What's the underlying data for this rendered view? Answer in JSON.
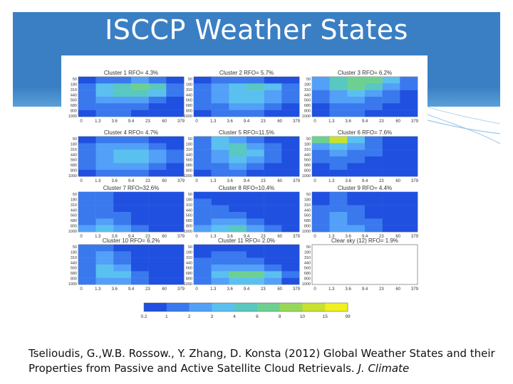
{
  "page": {
    "title": "ISCCP Weather States"
  },
  "citation": {
    "text": "Tselioudis, G.,W.B. Rossow., Y. Zhang, D. Konsta (2012) Global Weather States and their Properties from Passive and Active Satellite Cloud Retrievals.",
    "journal": "J. Climate"
  },
  "colors": {
    "banner": "#3a7fc4",
    "white": "#ffffff"
  },
  "chart_data": {
    "type": "heatmap",
    "x_ticks": [
      "0",
      "1.3",
      "3.6",
      "9.4",
      "23",
      "60",
      "379"
    ],
    "y_ticks": [
      "50",
      "180",
      "310",
      "440",
      "560",
      "680",
      "800",
      "1000"
    ],
    "colorbar": {
      "labels": [
        "0.2",
        "1",
        "2",
        "3",
        "4",
        "6",
        "8",
        "10",
        "15",
        "99"
      ],
      "colors": [
        "#2050e0",
        "#3a78ee",
        "#52a0f8",
        "#5ac0f0",
        "#58c8c0",
        "#6ed090",
        "#98d858",
        "#c8e030",
        "#f0f020"
      ]
    },
    "panels": [
      {
        "title": "Cluster 1   RFO= 4.3%",
        "cells": [
          [
            0,
            1,
            1,
            2,
            1,
            0
          ],
          [
            1,
            3,
            4,
            5,
            4,
            1
          ],
          [
            1,
            3,
            4,
            4,
            3,
            1
          ],
          [
            1,
            2,
            2,
            2,
            1,
            0
          ],
          [
            1,
            1,
            1,
            1,
            0,
            0
          ],
          [
            0,
            1,
            1,
            0,
            0,
            0
          ]
        ]
      },
      {
        "title": "Cluster 2   RFO= 5.7%",
        "cells": [
          [
            0,
            1,
            1,
            1,
            0,
            0
          ],
          [
            1,
            2,
            3,
            4,
            3,
            1
          ],
          [
            1,
            2,
            3,
            3,
            2,
            1
          ],
          [
            1,
            2,
            3,
            3,
            2,
            1
          ],
          [
            1,
            1,
            2,
            2,
            1,
            0
          ],
          [
            0,
            1,
            1,
            1,
            0,
            0
          ]
        ]
      },
      {
        "title": "Cluster 3   RFO= 6.2%",
        "cells": [
          [
            2,
            4,
            5,
            5,
            3,
            1
          ],
          [
            2,
            4,
            5,
            4,
            2,
            1
          ],
          [
            1,
            2,
            3,
            2,
            1,
            0
          ],
          [
            1,
            2,
            2,
            1,
            1,
            0
          ],
          [
            0,
            1,
            1,
            1,
            0,
            0
          ],
          [
            0,
            1,
            1,
            0,
            0,
            0
          ]
        ]
      },
      {
        "title": "Cluster 4   RFO= 4.7%",
        "cells": [
          [
            0,
            1,
            1,
            1,
            0,
            0
          ],
          [
            1,
            2,
            2,
            2,
            1,
            0
          ],
          [
            1,
            2,
            3,
            3,
            2,
            1
          ],
          [
            1,
            2,
            3,
            3,
            2,
            1
          ],
          [
            1,
            2,
            2,
            2,
            1,
            0
          ],
          [
            0,
            1,
            1,
            1,
            0,
            0
          ]
        ]
      },
      {
        "title": "Cluster 5   RFO=11.5%",
        "cells": [
          [
            1,
            3,
            2,
            1,
            0,
            0
          ],
          [
            1,
            3,
            4,
            2,
            1,
            0
          ],
          [
            1,
            2,
            4,
            3,
            1,
            0
          ],
          [
            1,
            2,
            3,
            2,
            1,
            0
          ],
          [
            1,
            1,
            2,
            1,
            0,
            0
          ],
          [
            0,
            1,
            1,
            0,
            0,
            0
          ]
        ]
      },
      {
        "title": "Cluster 6   RFO= 7.6%",
        "cells": [
          [
            5,
            7,
            3,
            1,
            0,
            0
          ],
          [
            2,
            3,
            2,
            1,
            0,
            0
          ],
          [
            1,
            2,
            1,
            1,
            0,
            0
          ],
          [
            1,
            1,
            1,
            0,
            0,
            0
          ],
          [
            0,
            1,
            0,
            0,
            0,
            0
          ],
          [
            0,
            0,
            0,
            0,
            0,
            0
          ]
        ]
      },
      {
        "title": "Cluster 7   RFO=32.6%",
        "cells": [
          [
            1,
            1,
            0,
            0,
            0,
            0
          ],
          [
            1,
            1,
            0,
            0,
            0,
            0
          ],
          [
            1,
            1,
            0,
            0,
            0,
            0
          ],
          [
            1,
            1,
            1,
            0,
            0,
            0
          ],
          [
            1,
            2,
            1,
            0,
            0,
            0
          ],
          [
            2,
            3,
            2,
            1,
            0,
            0
          ]
        ]
      },
      {
        "title": "Cluster 8   RFO=10.4%",
        "cells": [
          [
            0,
            0,
            0,
            0,
            0,
            0
          ],
          [
            1,
            0,
            0,
            0,
            0,
            0
          ],
          [
            1,
            1,
            0,
            0,
            0,
            0
          ],
          [
            1,
            1,
            1,
            0,
            0,
            0
          ],
          [
            1,
            2,
            2,
            1,
            0,
            0
          ],
          [
            2,
            3,
            4,
            2,
            1,
            0
          ]
        ]
      },
      {
        "title": "Cluster 9   RFO= 4.4%",
        "cells": [
          [
            0,
            1,
            0,
            0,
            0,
            0
          ],
          [
            0,
            1,
            0,
            0,
            0,
            0
          ],
          [
            1,
            1,
            1,
            0,
            0,
            0
          ],
          [
            1,
            2,
            1,
            0,
            0,
            0
          ],
          [
            1,
            2,
            1,
            1,
            0,
            0
          ],
          [
            1,
            2,
            2,
            1,
            0,
            0
          ]
        ]
      },
      {
        "title": "Cluster 10   RFO= 6.2%",
        "cells": [
          [
            1,
            1,
            0,
            0,
            0,
            0
          ],
          [
            1,
            2,
            1,
            0,
            0,
            0
          ],
          [
            1,
            2,
            1,
            0,
            0,
            0
          ],
          [
            1,
            3,
            2,
            0,
            0,
            0
          ],
          [
            1,
            3,
            3,
            1,
            0,
            0
          ],
          [
            1,
            2,
            2,
            1,
            0,
            0
          ]
        ]
      },
      {
        "title": "Cluster 11   RFO= 2.0%",
        "cells": [
          [
            0,
            0,
            0,
            0,
            0,
            0
          ],
          [
            0,
            1,
            1,
            0,
            0,
            0
          ],
          [
            1,
            1,
            1,
            1,
            0,
            0
          ],
          [
            1,
            2,
            2,
            2,
            1,
            0
          ],
          [
            1,
            3,
            5,
            5,
            3,
            1
          ],
          [
            1,
            2,
            3,
            3,
            2,
            0
          ]
        ]
      },
      {
        "title": "Clear sky (12)  RFO= 1.9%",
        "cells": []
      }
    ]
  }
}
